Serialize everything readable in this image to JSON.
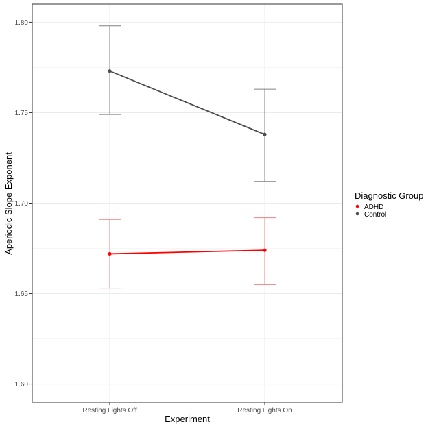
{
  "chart_data": {
    "type": "line",
    "xlabel": "Experiment",
    "ylabel": "Aperiodic Slope Exponent",
    "categories": [
      "Resting Lights Off",
      "Resting Lights On"
    ],
    "ylim": [
      1.59,
      1.81
    ],
    "yticks": [
      1.6,
      1.65,
      1.7,
      1.75,
      1.8
    ],
    "ytick_labels": [
      "1.60",
      "1.65",
      "1.70",
      "1.75",
      "1.80"
    ],
    "grid": true,
    "legend": {
      "title": "Diagnostic Group",
      "placement": "right"
    },
    "series": [
      {
        "name": "ADHD",
        "color": "#ff0000",
        "errorbar_color": "#f08080",
        "values": [
          1.672,
          1.674
        ],
        "lower": [
          1.653,
          1.655
        ],
        "upper": [
          1.691,
          1.692
        ]
      },
      {
        "name": "Control",
        "color": "#4d4d4d",
        "errorbar_color": "#808080",
        "values": [
          1.773,
          1.738
        ],
        "lower": [
          1.749,
          1.712
        ],
        "upper": [
          1.798,
          1.763
        ]
      }
    ]
  }
}
